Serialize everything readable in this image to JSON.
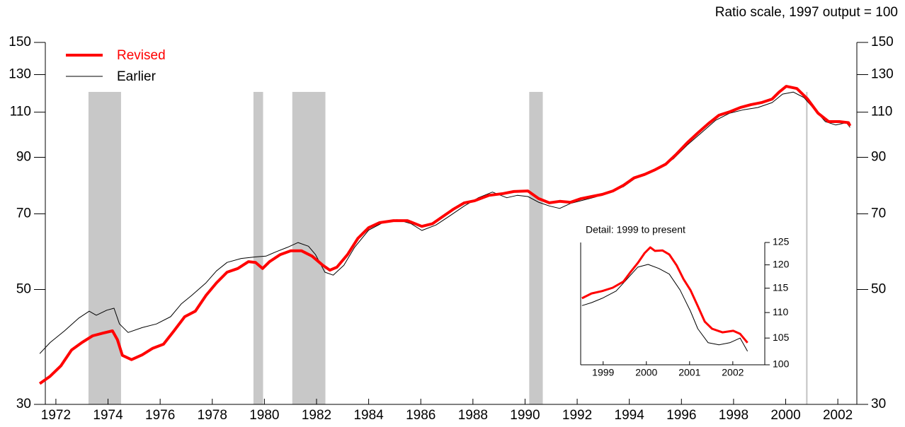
{
  "chart_data": [
    {
      "type": "line",
      "note": "Ratio scale, 1997 output = 100",
      "log_scale": true,
      "xlim": [
        1971.85,
        2003.23
      ],
      "ylim": [
        30,
        150
      ],
      "yticks": [
        30,
        50,
        70,
        90,
        110,
        130,
        150
      ],
      "xticks": [
        {
          "value": 1972.5,
          "label": "1972"
        },
        {
          "value": 1974.5,
          "label": "1974"
        },
        {
          "value": 1976.5,
          "label": "1976"
        },
        {
          "value": 1978.5,
          "label": "1978"
        },
        {
          "value": 1980.5,
          "label": "1980"
        },
        {
          "value": 1982.5,
          "label": "1982"
        },
        {
          "value": 1984.5,
          "label": "1984"
        },
        {
          "value": 1986.5,
          "label": "1986"
        },
        {
          "value": 1988.5,
          "label": "1988"
        },
        {
          "value": 1990.5,
          "label": "1990"
        },
        {
          "value": 1992.5,
          "label": "1992"
        },
        {
          "value": 1994.5,
          "label": "1994"
        },
        {
          "value": 1996.5,
          "label": "1996"
        },
        {
          "value": 1998.5,
          "label": "1998"
        },
        {
          "value": 2000.5,
          "label": "2000"
        },
        {
          "value": 2002.5,
          "label": "2002"
        }
      ],
      "recessions": [
        [
          1973.75,
          1975.0
        ],
        [
          1980.08,
          1980.45
        ],
        [
          1981.57,
          1982.84
        ],
        [
          1990.66,
          1991.18
        ],
        [
          2001.28,
          2001.34
        ]
      ],
      "recession_color": "#c8c8c8",
      "series": [
        {
          "name": "Revised",
          "color": "#ff0000",
          "x": [
            1971.88,
            1972.28,
            1972.69,
            1973.1,
            1973.5,
            1973.91,
            1974.32,
            1974.67,
            1974.86,
            1975.05,
            1975.4,
            1975.81,
            1976.22,
            1976.63,
            1977.03,
            1977.44,
            1977.85,
            1978.26,
            1978.66,
            1979.07,
            1979.48,
            1979.89,
            1980.16,
            1980.43,
            1980.7,
            1981.11,
            1981.51,
            1981.92,
            1982.33,
            1982.74,
            1983.01,
            1983.28,
            1983.69,
            1984.09,
            1984.5,
            1984.91,
            1985.45,
            1985.99,
            1986.54,
            1986.95,
            1987.35,
            1987.76,
            1988.17,
            1988.57,
            1989.12,
            1989.66,
            1990.07,
            1990.61,
            1991.02,
            1991.43,
            1991.83,
            1992.24,
            1992.65,
            1993.05,
            1993.46,
            1993.87,
            1994.28,
            1994.68,
            1995.09,
            1995.5,
            1995.9,
            1996.31,
            1996.72,
            1997.13,
            1997.53,
            1997.94,
            1998.35,
            1998.76,
            1999.16,
            1999.57,
            1999.98,
            2000.25,
            2000.52,
            2000.93,
            2001.34,
            2001.74,
            2002.15,
            2002.56,
            2002.91,
            2002.97
          ],
          "values": [
            32.9,
            34.0,
            35.6,
            38.2,
            39.5,
            40.7,
            41.2,
            41.6,
            40.0,
            37.3,
            36.6,
            37.4,
            38.5,
            39.2,
            41.6,
            44.3,
            45.4,
            48.7,
            51.5,
            54.0,
            54.9,
            56.6,
            56.4,
            54.9,
            56.6,
            58.4,
            59.4,
            59.4,
            58.0,
            55.7,
            54.5,
            55.2,
            58.4,
            62.8,
            65.8,
            67.3,
            67.9,
            67.9,
            66.2,
            67.0,
            69.2,
            71.5,
            73.5,
            74.2,
            76.0,
            76.6,
            77.3,
            77.5,
            74.9,
            73.5,
            74.0,
            73.7,
            74.9,
            75.6,
            76.3,
            77.5,
            79.5,
            82.1,
            83.4,
            85.2,
            87.3,
            91.3,
            96.0,
            100.3,
            104.5,
            108.5,
            110.2,
            112.3,
            113.7,
            114.8,
            116.6,
            120.3,
            123.4,
            122.2,
            116.6,
            109.5,
            105.5,
            105.5,
            105.0,
            103.5
          ]
        },
        {
          "name": "Earlier",
          "color": "#000000",
          "x": [
            1971.88,
            1972.28,
            1972.83,
            1973.37,
            1973.78,
            1974.05,
            1974.45,
            1974.73,
            1974.94,
            1975.27,
            1975.81,
            1976.36,
            1976.9,
            1977.31,
            1977.71,
            1978.26,
            1978.66,
            1979.07,
            1979.61,
            1980.16,
            1980.56,
            1980.97,
            1981.38,
            1981.79,
            1982.19,
            1982.46,
            1982.82,
            1983.14,
            1983.55,
            1983.96,
            1984.5,
            1985.04,
            1985.59,
            1986.13,
            1986.54,
            1987.08,
            1987.62,
            1988.17,
            1988.71,
            1989.25,
            1989.8,
            1990.2,
            1990.61,
            1991.02,
            1991.43,
            1991.83,
            1992.24,
            1992.65,
            1993.19,
            1993.73,
            1994.28,
            1994.82,
            1995.23,
            1995.63,
            1996.18,
            1996.72,
            1997.26,
            1997.81,
            1998.35,
            1998.89,
            1999.43,
            1999.98,
            2000.38,
            2000.79,
            2001.2,
            2001.61,
            2002.02,
            2002.42,
            2002.83,
            2002.97
          ],
          "values": [
            37.6,
            39.5,
            41.6,
            44.0,
            45.4,
            44.6,
            45.6,
            46.0,
            42.9,
            41.3,
            42.2,
            42.9,
            44.3,
            46.9,
            48.7,
            51.5,
            54.3,
            56.4,
            57.4,
            57.8,
            58.0,
            59.2,
            60.3,
            61.6,
            60.6,
            58.4,
            54.0,
            53.3,
            55.7,
            60.3,
            65.1,
            67.3,
            68.2,
            67.0,
            65.0,
            66.6,
            69.4,
            72.5,
            75.2,
            77.1,
            75.2,
            76.0,
            75.6,
            73.7,
            72.5,
            71.7,
            73.3,
            74.2,
            75.4,
            77.1,
            79.0,
            82.6,
            84.3,
            85.6,
            89.3,
            95.0,
            100.3,
            106.1,
            109.5,
            111.2,
            112.3,
            114.8,
            119.2,
            120.3,
            117.4,
            111.2,
            105.5,
            103.9,
            105.0,
            102.8
          ]
        }
      ]
    },
    {
      "type": "line",
      "title": "Detail: 1999 to present",
      "log_scale": true,
      "xlim": [
        1998.98,
        2003.24
      ],
      "ylim": [
        100,
        125
      ],
      "yticks": [
        100,
        105,
        110,
        115,
        120,
        125
      ],
      "xticks": [
        {
          "value": 1999.5,
          "label": "1999"
        },
        {
          "value": 2000.5,
          "label": "2000"
        },
        {
          "value": 2001.5,
          "label": "2001"
        },
        {
          "value": 2002.5,
          "label": "2002"
        }
      ],
      "series": [
        {
          "name": "Revised",
          "color": "#ff0000",
          "x": [
            1999.01,
            1999.23,
            1999.48,
            1999.72,
            1999.97,
            2000.13,
            2000.3,
            2000.46,
            2000.59,
            2000.7,
            2000.87,
            2001.03,
            2001.2,
            2001.36,
            2001.52,
            2001.69,
            2001.85,
            2002.02,
            2002.26,
            2002.51,
            2002.67,
            2002.84
          ],
          "values": [
            112.9,
            113.9,
            114.4,
            115.1,
            116.4,
            118.4,
            120.4,
            122.6,
            123.9,
            123.1,
            123.2,
            122.3,
            119.9,
            116.9,
            114.6,
            111.3,
            108.2,
            106.8,
            106.1,
            106.4,
            105.8,
            104.1
          ]
        },
        {
          "name": "Earlier",
          "color": "#000000",
          "x": [
            1999.01,
            1999.23,
            1999.48,
            1999.8,
            2000.05,
            2000.3,
            2000.54,
            2000.79,
            2001.03,
            2001.28,
            2001.52,
            2001.69,
            2001.93,
            2002.18,
            2002.43,
            2002.67,
            2002.84
          ],
          "values": [
            111.4,
            112.0,
            112.9,
            114.4,
            116.9,
            119.5,
            120.1,
            119.2,
            118.0,
            114.6,
            110.3,
            106.8,
            104.1,
            103.7,
            104.1,
            105.0,
            102.5
          ]
        }
      ]
    }
  ]
}
